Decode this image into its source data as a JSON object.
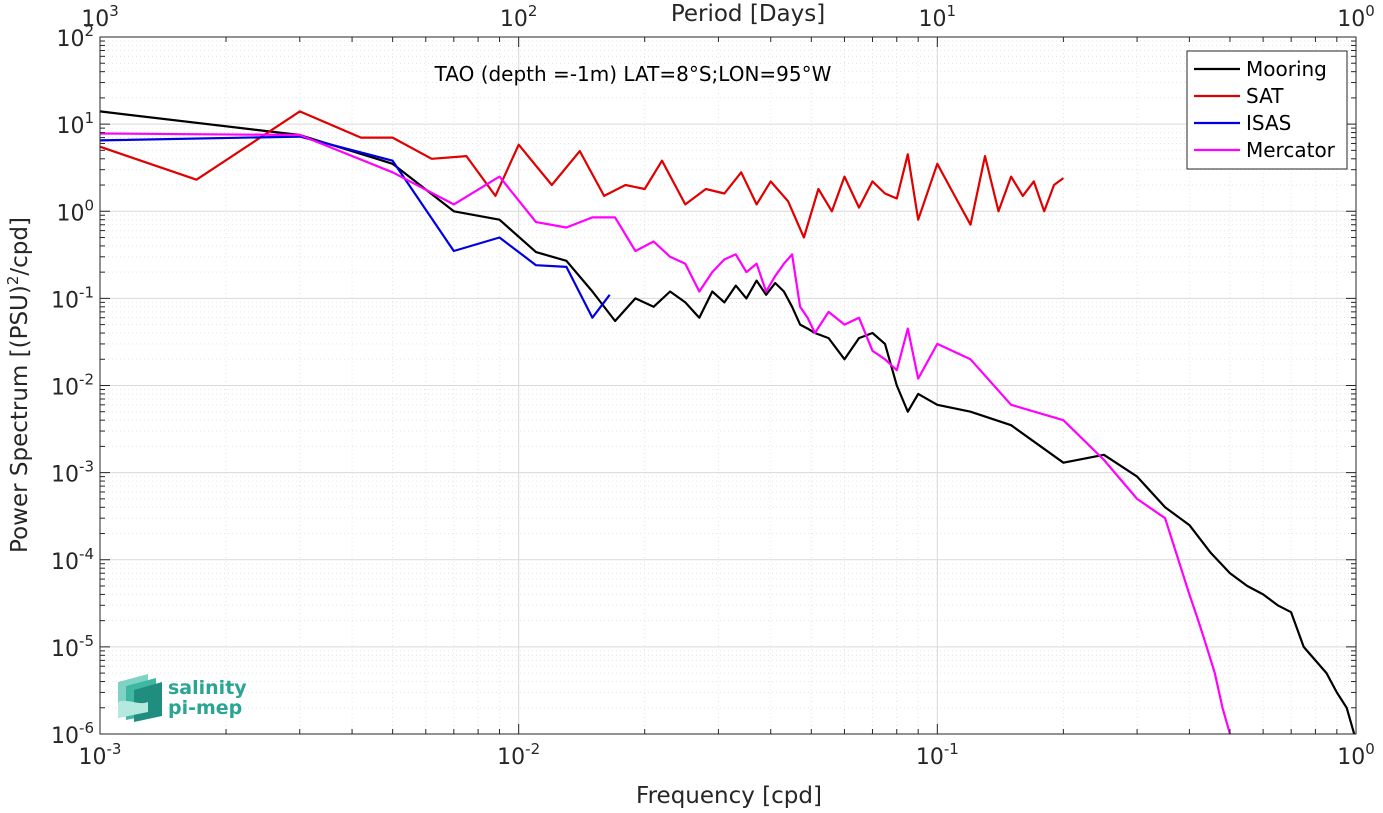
{
  "chart_data": {
    "type": "line",
    "title": "TAO (depth =-1m) LAT=8°S;LON=95°W",
    "xlabel": "Frequency [cpd]",
    "ylabel": "Power Spectrum [(PSU)",
    "ylabel_sup": "2",
    "ylabel_tail": "/cpd]",
    "top_xlabel": "Period [Days]",
    "xscale": "log",
    "yscale": "log",
    "xlim": [
      0.001,
      1
    ],
    "ylim": [
      1e-06,
      100
    ],
    "grid": true,
    "minor_grid": true,
    "legend_position": "top-right",
    "x_ticks": [
      {
        "value": 0.001,
        "base": "10",
        "exp": "-3"
      },
      {
        "value": 0.01,
        "base": "10",
        "exp": "-2"
      },
      {
        "value": 0.1,
        "base": "10",
        "exp": "-1"
      },
      {
        "value": 1,
        "base": "10",
        "exp": "0"
      }
    ],
    "top_x_ticks": [
      {
        "value": 0.001,
        "base": "10",
        "exp": "3"
      },
      {
        "value": 0.01,
        "base": "10",
        "exp": "2"
      },
      {
        "value": 0.1,
        "base": "10",
        "exp": "1"
      },
      {
        "value": 1,
        "base": "10",
        "exp": "0"
      }
    ],
    "y_ticks": [
      {
        "value": 100,
        "base": "10",
        "exp": "2"
      },
      {
        "value": 10,
        "base": "10",
        "exp": "1"
      },
      {
        "value": 1,
        "base": "10",
        "exp": "0"
      },
      {
        "value": 0.1,
        "base": "10",
        "exp": "-1"
      },
      {
        "value": 0.01,
        "base": "10",
        "exp": "-2"
      },
      {
        "value": 0.001,
        "base": "10",
        "exp": "-3"
      },
      {
        "value": 0.0001,
        "base": "10",
        "exp": "-4"
      },
      {
        "value": 1e-05,
        "base": "10",
        "exp": "-5"
      },
      {
        "value": 1e-06,
        "base": "10",
        "exp": "-6"
      }
    ],
    "series": [
      {
        "name": "Mooring",
        "color": "#000000",
        "x": [
          0.001,
          0.003,
          0.005,
          0.007,
          0.009,
          0.011,
          0.013,
          0.015,
          0.017,
          0.019,
          0.021,
          0.023,
          0.025,
          0.027,
          0.029,
          0.031,
          0.033,
          0.035,
          0.037,
          0.039,
          0.041,
          0.043,
          0.045,
          0.047,
          0.049,
          0.051,
          0.055,
          0.06,
          0.065,
          0.07,
          0.075,
          0.08,
          0.085,
          0.09,
          0.1,
          0.12,
          0.15,
          0.2,
          0.25,
          0.3,
          0.35,
          0.4,
          0.45,
          0.5,
          0.55,
          0.6,
          0.65,
          0.7,
          0.75,
          0.8,
          0.85,
          0.9,
          0.95,
          0.99
        ],
        "y": [
          14,
          7.5,
          3.5,
          1.0,
          0.8,
          0.34,
          0.27,
          0.12,
          0.055,
          0.1,
          0.08,
          0.12,
          0.09,
          0.06,
          0.12,
          0.09,
          0.14,
          0.1,
          0.16,
          0.11,
          0.15,
          0.12,
          0.08,
          0.05,
          0.045,
          0.04,
          0.035,
          0.02,
          0.035,
          0.04,
          0.03,
          0.01,
          0.005,
          0.008,
          0.006,
          0.005,
          0.0035,
          0.0013,
          0.0016,
          0.0009,
          0.0004,
          0.00025,
          0.00012,
          7e-05,
          5e-05,
          4e-05,
          3e-05,
          2.5e-05,
          1e-05,
          7e-06,
          5e-06,
          3e-06,
          2e-06,
          1e-06
        ]
      },
      {
        "name": "SAT",
        "color": "#e00000",
        "x": [
          0.001,
          0.0017,
          0.003,
          0.0042,
          0.005,
          0.0062,
          0.0075,
          0.0088,
          0.01,
          0.012,
          0.014,
          0.016,
          0.018,
          0.02,
          0.022,
          0.025,
          0.028,
          0.031,
          0.034,
          0.037,
          0.04,
          0.044,
          0.048,
          0.052,
          0.056,
          0.06,
          0.065,
          0.07,
          0.075,
          0.08,
          0.085,
          0.09,
          0.1,
          0.11,
          0.12,
          0.13,
          0.14,
          0.15,
          0.16,
          0.17,
          0.18,
          0.19,
          0.2
        ],
        "y": [
          5.5,
          2.3,
          14,
          7,
          7,
          4,
          4.3,
          1.5,
          5.8,
          2,
          4.9,
          1.5,
          2,
          1.8,
          3.8,
          1.2,
          1.8,
          1.6,
          2.8,
          1.2,
          2.2,
          1.3,
          0.5,
          1.8,
          1.0,
          2.5,
          1.1,
          2.2,
          1.6,
          1.4,
          4.5,
          0.8,
          3.5,
          1.5,
          0.7,
          4.3,
          1.0,
          2.5,
          1.5,
          2.2,
          1.0,
          2.0,
          2.4
        ]
      },
      {
        "name": "ISAS",
        "color": "#0000e0",
        "x": [
          0.001,
          0.003,
          0.005,
          0.007,
          0.009,
          0.011,
          0.013,
          0.015,
          0.0165
        ],
        "y": [
          6.5,
          7.2,
          3.8,
          0.35,
          0.5,
          0.24,
          0.23,
          0.06,
          0.11
        ]
      },
      {
        "name": "Mercator",
        "color": "#ff00ff",
        "x": [
          0.001,
          0.003,
          0.005,
          0.007,
          0.009,
          0.011,
          0.013,
          0.015,
          0.017,
          0.019,
          0.021,
          0.023,
          0.025,
          0.027,
          0.029,
          0.031,
          0.033,
          0.035,
          0.037,
          0.039,
          0.041,
          0.043,
          0.045,
          0.047,
          0.049,
          0.051,
          0.055,
          0.06,
          0.065,
          0.07,
          0.075,
          0.08,
          0.085,
          0.09,
          0.1,
          0.12,
          0.15,
          0.2,
          0.25,
          0.3,
          0.35,
          0.4,
          0.42,
          0.44,
          0.46,
          0.48,
          0.5
        ],
        "y": [
          7.8,
          7.5,
          2.8,
          1.2,
          2.5,
          0.75,
          0.65,
          0.85,
          0.85,
          0.35,
          0.45,
          0.3,
          0.25,
          0.12,
          0.2,
          0.28,
          0.32,
          0.2,
          0.25,
          0.12,
          0.18,
          0.25,
          0.32,
          0.08,
          0.06,
          0.04,
          0.07,
          0.05,
          0.06,
          0.025,
          0.02,
          0.015,
          0.045,
          0.012,
          0.03,
          0.02,
          0.006,
          0.004,
          0.0014,
          0.0005,
          0.0003,
          4e-05,
          2e-05,
          1e-05,
          5e-06,
          2e-06,
          1e-06
        ]
      }
    ]
  },
  "logo": {
    "line1": "salinity",
    "line2": "pi-mep",
    "color": "#2aa594"
  }
}
